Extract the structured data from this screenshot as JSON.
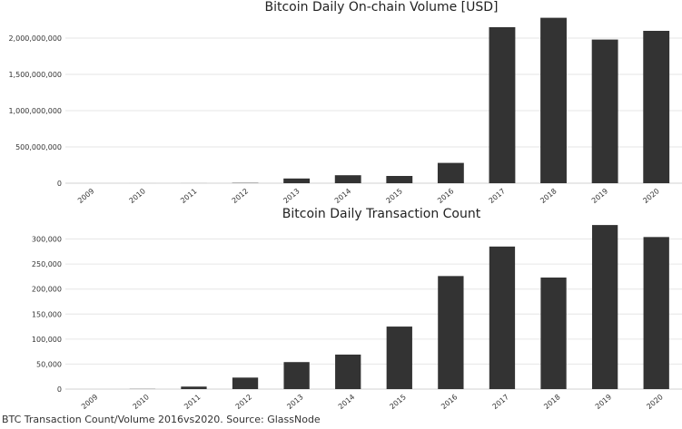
{
  "colors": {
    "bar": "#333333",
    "grid": "#e6e6e6",
    "axis": "#d0d0d0"
  },
  "chart_data": [
    {
      "type": "bar",
      "title": "Bitcoin Daily On-chain Volume [USD]",
      "categories": [
        "2009",
        "2010",
        "2011",
        "2012",
        "2013",
        "2014",
        "2015",
        "2016",
        "2017",
        "2018",
        "2019",
        "2020"
      ],
      "values": [
        0,
        100000,
        500000,
        4000000,
        65000000,
        110000000,
        100000000,
        280000000,
        2150000000,
        2280000000,
        1980000000,
        2100000000
      ],
      "ylim": [
        0,
        2300000000
      ],
      "yticks": [
        0,
        500000000,
        1000000000,
        1500000000,
        2000000000
      ],
      "ytick_labels": [
        "0",
        "500,000,000",
        "1,000,000,000",
        "1,500,000,000",
        "2,000,000,000"
      ],
      "grid": true,
      "xlabel": "",
      "ylabel": ""
    },
    {
      "type": "bar",
      "title": "Bitcoin Daily Transaction Count",
      "categories": [
        "2009",
        "2010",
        "2011",
        "2012",
        "2013",
        "2014",
        "2015",
        "2016",
        "2017",
        "2018",
        "2019",
        "2020"
      ],
      "values": [
        0,
        300,
        5000,
        23000,
        54000,
        69000,
        125000,
        226000,
        285000,
        223000,
        328000,
        304000
      ],
      "ylim": [
        0,
        330000
      ],
      "yticks": [
        0,
        50000,
        100000,
        150000,
        200000,
        250000,
        300000
      ],
      "ytick_labels": [
        "0",
        "50,000",
        "100,000",
        "150,000",
        "200,000",
        "250,000",
        "300,000"
      ],
      "grid": true,
      "xlabel": "",
      "ylabel": ""
    }
  ],
  "caption": "BTC Transaction Count/Volume 2016vs2020. Source: GlassNode"
}
